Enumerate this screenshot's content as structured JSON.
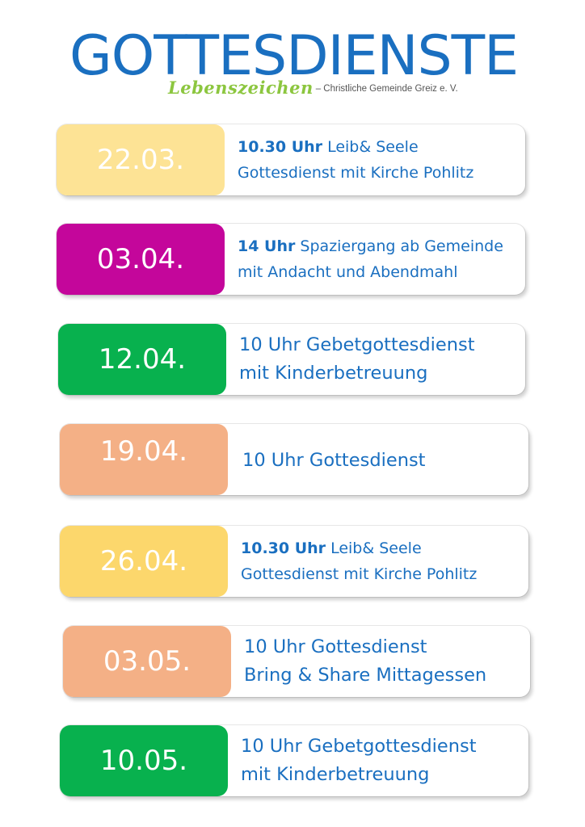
{
  "header": {
    "title": "GOTTESDIENSTE",
    "brand": "Lebenszeichen",
    "org": "– Christliche Gemeinde Greiz e. V."
  },
  "colors": {
    "title_blue": "#1a6fc0",
    "brand_green": "#8cc63f",
    "yellow": "#fde395",
    "magenta": "#c4069b",
    "green": "#08b14e",
    "peach": "#f4b086",
    "yellow_bright": "#fcd76c"
  },
  "events": [
    {
      "date": "22.03.",
      "color": "#fde395",
      "line1_bold": "10.30 Uhr",
      "line1_rest": " Leib& Seele",
      "line2": "Gottesdienst mit Kirche Pohlitz"
    },
    {
      "date": "03.04.",
      "color": "#c4069b",
      "line1_bold": "14 Uhr",
      "line1_rest": " Spaziergang ab Gemeinde",
      "line2": "mit Andacht und Abendmahl"
    },
    {
      "date": "12.04.",
      "color": "#08b14e",
      "line1": "10 Uhr Gebetgottesdienst",
      "line2": "mit Kinderbetreuung"
    },
    {
      "date": "19.04.",
      "color": "#f4b086",
      "line1": "10 Uhr Gottesdienst"
    },
    {
      "date": "26.04.",
      "color": "#fcd76c",
      "line1_bold": "10.30 Uhr",
      "line1_rest": " Leib& Seele",
      "line2": "Gottesdienst mit Kirche Pohlitz"
    },
    {
      "date": "03.05.",
      "color": "#f4b086",
      "line1": "10 Uhr Gottesdienst",
      "line2": "Bring & Share Mittagessen"
    },
    {
      "date": "10.05.",
      "color": "#08b14e",
      "line1": "10 Uhr Gebetgottesdienst",
      "line2": "mit Kinderbetreuung"
    }
  ]
}
